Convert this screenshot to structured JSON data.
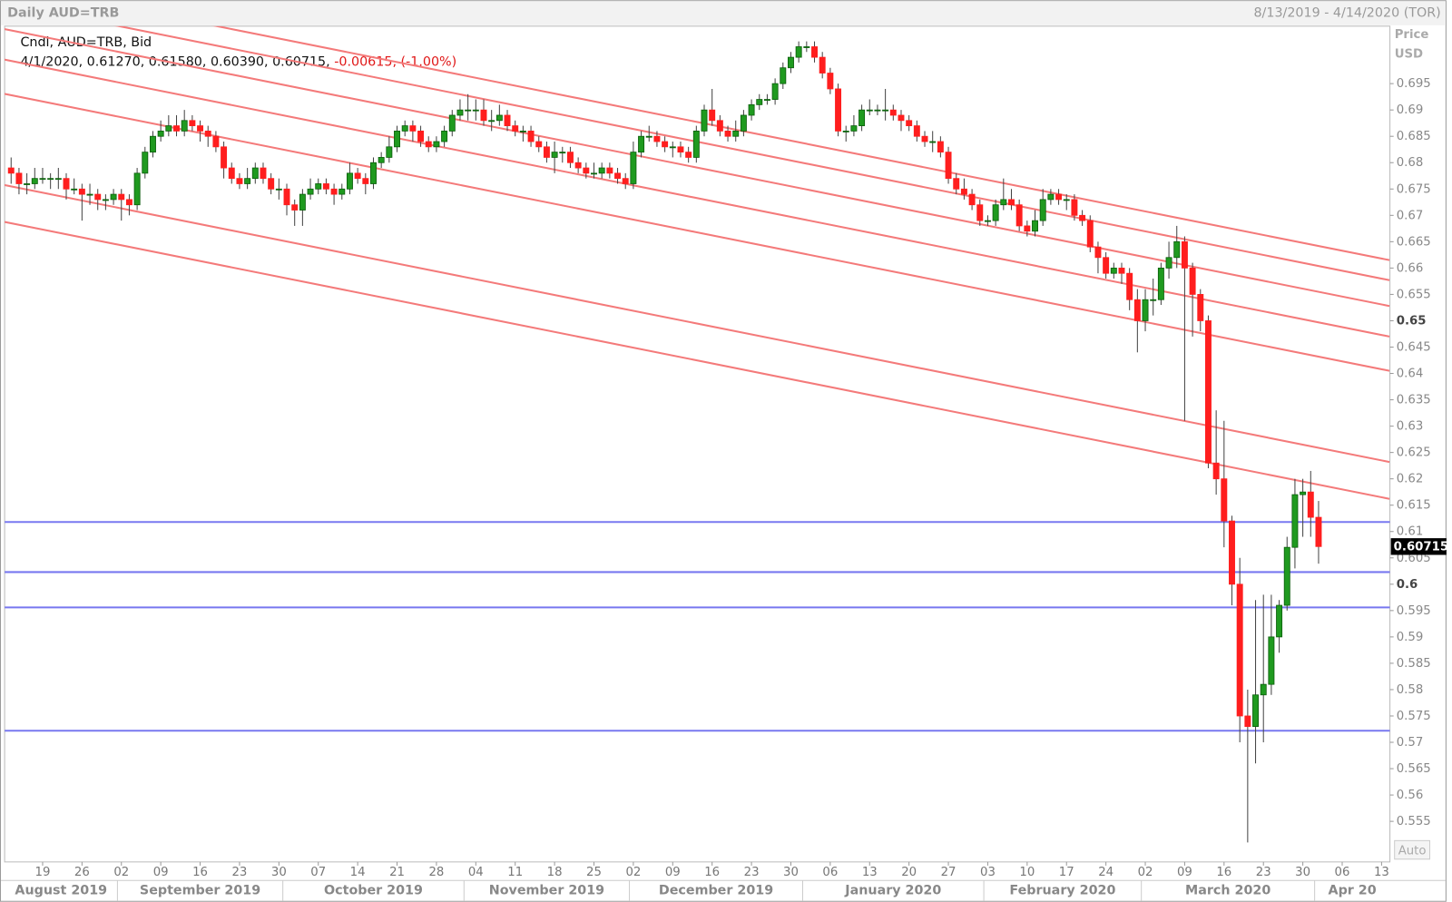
{
  "chart_data": {
    "type": "candlestick",
    "title": "Daily AUD=TRB",
    "date_range": "8/13/2019 - 4/14/2020 (TOR)",
    "y_label": "Price",
    "y_unit": "USD",
    "series_label": "Cndl, AUD=TRB, Bid",
    "info": "4/1/2020, 0.61270, 0.61580, 0.60390, 0.60715,",
    "change": "-0.00615, (-1.00%)",
    "auto_button": "Auto",
    "up_color": "#1f9a1f",
    "down_color": "#ff1e1e",
    "trendline_color": "#f47a7a",
    "hline_color": "#7878f0",
    "ylim": [
      0.5473,
      0.7059
    ],
    "yticks": [
      0.555,
      0.56,
      0.565,
      0.57,
      0.575,
      0.58,
      0.585,
      0.59,
      0.595,
      0.6,
      0.605,
      0.61,
      0.615,
      0.62,
      0.625,
      0.63,
      0.635,
      0.64,
      0.645,
      0.65,
      0.655,
      0.66,
      0.665,
      0.67,
      0.675,
      0.68,
      0.685,
      0.69,
      0.695
    ],
    "xlim": [
      "2019-08-12",
      "2020-04-14"
    ],
    "xticks": [
      {
        "value": "2019-08-19",
        "label": "19"
      },
      {
        "value": "2019-08-26",
        "label": "26"
      },
      {
        "value": "2019-09-02",
        "label": "02"
      },
      {
        "value": "2019-09-09",
        "label": "09"
      },
      {
        "value": "2019-09-16",
        "label": "16"
      },
      {
        "value": "2019-09-23",
        "label": "23"
      },
      {
        "value": "2019-09-30",
        "label": "30"
      },
      {
        "value": "2019-10-07",
        "label": "07"
      },
      {
        "value": "2019-10-14",
        "label": "14"
      },
      {
        "value": "2019-10-21",
        "label": "21"
      },
      {
        "value": "2019-10-28",
        "label": "28"
      },
      {
        "value": "2019-11-04",
        "label": "04"
      },
      {
        "value": "2019-11-11",
        "label": "11"
      },
      {
        "value": "2019-11-18",
        "label": "18"
      },
      {
        "value": "2019-11-25",
        "label": "25"
      },
      {
        "value": "2019-12-02",
        "label": "02"
      },
      {
        "value": "2019-12-09",
        "label": "09"
      },
      {
        "value": "2019-12-16",
        "label": "16"
      },
      {
        "value": "2019-12-23",
        "label": "23"
      },
      {
        "value": "2019-12-30",
        "label": "30"
      },
      {
        "value": "2020-01-06",
        "label": "06"
      },
      {
        "value": "2020-01-13",
        "label": "13"
      },
      {
        "value": "2020-01-20",
        "label": "20"
      },
      {
        "value": "2020-01-27",
        "label": "27"
      },
      {
        "value": "2020-02-03",
        "label": "03"
      },
      {
        "value": "2020-02-10",
        "label": "10"
      },
      {
        "value": "2020-02-17",
        "label": "17"
      },
      {
        "value": "2020-02-24",
        "label": "24"
      },
      {
        "value": "2020-03-02",
        "label": "02"
      },
      {
        "value": "2020-03-09",
        "label": "09"
      },
      {
        "value": "2020-03-16",
        "label": "16"
      },
      {
        "value": "2020-03-23",
        "label": "23"
      },
      {
        "value": "2020-03-30",
        "label": "30"
      },
      {
        "value": "2020-04-06",
        "label": "06"
      },
      {
        "value": "2020-04-13",
        "label": "13"
      }
    ],
    "x_months": [
      {
        "value": "2019-08-01",
        "label": "August 2019"
      },
      {
        "value": "2019-09-01",
        "label": "September 2019"
      },
      {
        "value": "2019-10-01",
        "label": "October 2019"
      },
      {
        "value": "2019-11-01",
        "label": "November 2019"
      },
      {
        "value": "2019-12-01",
        "label": "December 2019"
      },
      {
        "value": "2020-01-01",
        "label": "January 2020"
      },
      {
        "value": "2020-02-01",
        "label": "February 2020"
      },
      {
        "value": "2020-03-01",
        "label": "March 2020"
      },
      {
        "value": "2020-04-01",
        "label": "Apr 20"
      }
    ],
    "x": [
      "2019-08-13",
      "2019-08-14",
      "2019-08-15",
      "2019-08-16",
      "2019-08-19",
      "2019-08-20",
      "2019-08-21",
      "2019-08-22",
      "2019-08-23",
      "2019-08-26",
      "2019-08-27",
      "2019-08-28",
      "2019-08-29",
      "2019-08-30",
      "2019-09-02",
      "2019-09-03",
      "2019-09-04",
      "2019-09-05",
      "2019-09-06",
      "2019-09-09",
      "2019-09-10",
      "2019-09-11",
      "2019-09-12",
      "2019-09-13",
      "2019-09-16",
      "2019-09-17",
      "2019-09-18",
      "2019-09-19",
      "2019-09-20",
      "2019-09-23",
      "2019-09-24",
      "2019-09-25",
      "2019-09-26",
      "2019-09-27",
      "2019-09-30",
      "2019-10-01",
      "2019-10-02",
      "2019-10-03",
      "2019-10-04",
      "2019-10-07",
      "2019-10-08",
      "2019-10-09",
      "2019-10-10",
      "2019-10-11",
      "2019-10-14",
      "2019-10-15",
      "2019-10-16",
      "2019-10-17",
      "2019-10-18",
      "2019-10-21",
      "2019-10-22",
      "2019-10-23",
      "2019-10-24",
      "2019-10-25",
      "2019-10-28",
      "2019-10-29",
      "2019-10-30",
      "2019-10-31",
      "2019-11-01",
      "2019-11-04",
      "2019-11-05",
      "2019-11-06",
      "2019-11-07",
      "2019-11-08",
      "2019-11-11",
      "2019-11-12",
      "2019-11-13",
      "2019-11-14",
      "2019-11-15",
      "2019-11-18",
      "2019-11-19",
      "2019-11-20",
      "2019-11-21",
      "2019-11-22",
      "2019-11-25",
      "2019-11-26",
      "2019-11-27",
      "2019-11-28",
      "2019-11-29",
      "2019-12-02",
      "2019-12-03",
      "2019-12-04",
      "2019-12-05",
      "2019-12-06",
      "2019-12-09",
      "2019-12-10",
      "2019-12-11",
      "2019-12-12",
      "2019-12-13",
      "2019-12-16",
      "2019-12-17",
      "2019-12-18",
      "2019-12-19",
      "2019-12-20",
      "2019-12-23",
      "2019-12-24",
      "2019-12-25",
      "2019-12-26",
      "2019-12-27",
      "2019-12-30",
      "2019-12-31",
      "2020-01-01",
      "2020-01-02",
      "2020-01-03",
      "2020-01-06",
      "2020-01-07",
      "2020-01-08",
      "2020-01-09",
      "2020-01-10",
      "2020-01-13",
      "2020-01-14",
      "2020-01-15",
      "2020-01-16",
      "2020-01-17",
      "2020-01-20",
      "2020-01-21",
      "2020-01-22",
      "2020-01-23",
      "2020-01-24",
      "2020-01-27",
      "2020-01-28",
      "2020-01-29",
      "2020-01-30",
      "2020-01-31",
      "2020-02-03",
      "2020-02-04",
      "2020-02-05",
      "2020-02-06",
      "2020-02-07",
      "2020-02-10",
      "2020-02-11",
      "2020-02-12",
      "2020-02-13",
      "2020-02-14",
      "2020-02-17",
      "2020-02-18",
      "2020-02-19",
      "2020-02-20",
      "2020-02-21",
      "2020-02-24",
      "2020-02-25",
      "2020-02-26",
      "2020-02-27",
      "2020-02-28",
      "2020-03-02",
      "2020-03-03",
      "2020-03-04",
      "2020-03-05",
      "2020-03-06",
      "2020-03-09",
      "2020-03-10",
      "2020-03-11",
      "2020-03-12",
      "2020-03-13",
      "2020-03-16",
      "2020-03-17",
      "2020-03-18",
      "2020-03-19",
      "2020-03-20",
      "2020-03-23",
      "2020-03-24",
      "2020-03-25",
      "2020-03-26",
      "2020-03-27",
      "2020-03-30",
      "2020-03-31",
      "2020-04-01"
    ],
    "open": [
      0.679,
      0.678,
      0.676,
      0.676,
      0.677,
      0.677,
      0.677,
      0.677,
      0.675,
      0.675,
      0.674,
      0.674,
      0.673,
      0.673,
      0.674,
      0.673,
      0.672,
      0.678,
      0.682,
      0.685,
      0.686,
      0.687,
      0.686,
      0.688,
      0.687,
      0.686,
      0.685,
      0.683,
      0.679,
      0.677,
      0.676,
      0.677,
      0.679,
      0.677,
      0.675,
      0.675,
      0.672,
      0.671,
      0.674,
      0.675,
      0.676,
      0.675,
      0.674,
      0.675,
      0.678,
      0.677,
      0.676,
      0.68,
      0.681,
      0.683,
      0.686,
      0.687,
      0.686,
      0.684,
      0.683,
      0.684,
      0.686,
      0.689,
      0.69,
      0.69,
      0.69,
      0.688,
      0.688,
      0.689,
      0.687,
      0.686,
      0.686,
      0.684,
      0.683,
      0.681,
      0.682,
      0.682,
      0.68,
      0.679,
      0.678,
      0.678,
      0.679,
      0.678,
      0.677,
      0.676,
      0.682,
      0.685,
      0.685,
      0.684,
      0.683,
      0.683,
      0.682,
      0.681,
      0.686,
      0.69,
      0.688,
      0.686,
      0.685,
      0.686,
      0.689,
      0.691,
      0.692,
      0.692,
      0.695,
      0.698,
      0.7,
      0.702,
      0.702,
      0.7,
      0.697,
      0.694,
      0.686,
      0.686,
      0.687,
      0.69,
      0.69,
      0.69,
      0.69,
      0.689,
      0.688,
      0.687,
      0.685,
      0.684,
      0.684,
      0.682,
      0.677,
      0.675,
      0.674,
      0.672,
      0.669,
      0.669,
      0.672,
      0.673,
      0.672,
      0.668,
      0.667,
      0.669,
      0.673,
      0.674,
      0.673,
      0.673,
      0.67,
      0.669,
      0.664,
      0.662,
      0.659,
      0.66,
      0.659,
      0.654,
      0.65,
      0.654,
      0.654,
      0.66,
      0.662,
      0.665,
      0.66,
      0.655,
      0.65,
      0.623,
      0.62,
      0.612,
      0.6,
      0.575,
      0.573,
      0.579,
      0.581,
      0.59,
      0.596,
      0.607,
      0.617,
      0.6175,
      0.6127
    ],
    "high": [
      0.681,
      0.679,
      0.678,
      0.679,
      0.679,
      0.678,
      0.679,
      0.678,
      0.677,
      0.676,
      0.676,
      0.675,
      0.674,
      0.675,
      0.675,
      0.674,
      0.679,
      0.683,
      0.686,
      0.688,
      0.689,
      0.689,
      0.69,
      0.689,
      0.688,
      0.687,
      0.686,
      0.684,
      0.68,
      0.678,
      0.679,
      0.68,
      0.68,
      0.678,
      0.677,
      0.676,
      0.673,
      0.675,
      0.677,
      0.677,
      0.677,
      0.676,
      0.676,
      0.68,
      0.679,
      0.678,
      0.681,
      0.682,
      0.685,
      0.687,
      0.688,
      0.688,
      0.687,
      0.685,
      0.685,
      0.687,
      0.69,
      0.692,
      0.693,
      0.692,
      0.692,
      0.69,
      0.691,
      0.69,
      0.688,
      0.687,
      0.687,
      0.685,
      0.684,
      0.684,
      0.683,
      0.683,
      0.681,
      0.68,
      0.68,
      0.68,
      0.68,
      0.679,
      0.678,
      0.684,
      0.686,
      0.687,
      0.686,
      0.685,
      0.684,
      0.684,
      0.683,
      0.687,
      0.691,
      0.694,
      0.689,
      0.687,
      0.688,
      0.69,
      0.692,
      0.693,
      0.693,
      0.696,
      0.699,
      0.701,
      0.703,
      0.703,
      0.703,
      0.701,
      0.698,
      0.695,
      0.687,
      0.689,
      0.691,
      0.692,
      0.691,
      0.694,
      0.691,
      0.69,
      0.689,
      0.688,
      0.686,
      0.686,
      0.685,
      0.683,
      0.678,
      0.677,
      0.675,
      0.673,
      0.67,
      0.673,
      0.677,
      0.675,
      0.673,
      0.669,
      0.671,
      0.675,
      0.675,
      0.675,
      0.674,
      0.674,
      0.671,
      0.67,
      0.665,
      0.663,
      0.661,
      0.661,
      0.66,
      0.656,
      0.656,
      0.658,
      0.661,
      0.665,
      0.668,
      0.666,
      0.661,
      0.656,
      0.651,
      0.633,
      0.631,
      0.613,
      0.605,
      0.58,
      0.597,
      0.598,
      0.598,
      0.597,
      0.609,
      0.62,
      0.62,
      0.6215,
      0.6158
    ],
    "low": [
      0.676,
      0.674,
      0.674,
      0.675,
      0.676,
      0.675,
      0.675,
      0.673,
      0.674,
      0.669,
      0.672,
      0.671,
      0.671,
      0.672,
      0.669,
      0.67,
      0.671,
      0.677,
      0.681,
      0.684,
      0.685,
      0.685,
      0.685,
      0.686,
      0.684,
      0.683,
      0.682,
      0.677,
      0.676,
      0.675,
      0.675,
      0.676,
      0.676,
      0.674,
      0.673,
      0.67,
      0.668,
      0.668,
      0.673,
      0.674,
      0.674,
      0.672,
      0.673,
      0.674,
      0.676,
      0.674,
      0.675,
      0.679,
      0.68,
      0.682,
      0.685,
      0.684,
      0.683,
      0.682,
      0.682,
      0.683,
      0.685,
      0.688,
      0.688,
      0.688,
      0.687,
      0.686,
      0.687,
      0.686,
      0.685,
      0.684,
      0.683,
      0.682,
      0.68,
      0.678,
      0.68,
      0.679,
      0.678,
      0.677,
      0.677,
      0.677,
      0.677,
      0.676,
      0.675,
      0.675,
      0.681,
      0.684,
      0.683,
      0.682,
      0.681,
      0.681,
      0.68,
      0.68,
      0.685,
      0.687,
      0.685,
      0.684,
      0.684,
      0.685,
      0.688,
      0.69,
      0.691,
      0.691,
      0.694,
      0.697,
      0.699,
      0.701,
      0.699,
      0.696,
      0.693,
      0.685,
      0.684,
      0.685,
      0.686,
      0.689,
      0.689,
      0.688,
      0.688,
      0.686,
      0.686,
      0.684,
      0.683,
      0.682,
      0.681,
      0.676,
      0.674,
      0.673,
      0.671,
      0.668,
      0.668,
      0.668,
      0.671,
      0.671,
      0.667,
      0.666,
      0.666,
      0.668,
      0.672,
      0.672,
      0.671,
      0.669,
      0.668,
      0.663,
      0.659,
      0.658,
      0.658,
      0.657,
      0.652,
      0.644,
      0.648,
      0.651,
      0.653,
      0.658,
      0.66,
      0.631,
      0.647,
      0.648,
      0.622,
      0.617,
      0.607,
      0.596,
      0.57,
      0.551,
      0.566,
      0.57,
      0.579,
      0.587,
      0.595,
      0.603,
      0.609,
      0.609,
      0.6039
    ],
    "close": [
      0.678,
      0.676,
      0.676,
      0.677,
      0.677,
      0.677,
      0.677,
      0.675,
      0.675,
      0.674,
      0.674,
      0.673,
      0.673,
      0.674,
      0.673,
      0.672,
      0.678,
      0.682,
      0.685,
      0.686,
      0.687,
      0.686,
      0.688,
      0.687,
      0.686,
      0.685,
      0.683,
      0.679,
      0.677,
      0.676,
      0.677,
      0.679,
      0.677,
      0.675,
      0.675,
      0.672,
      0.671,
      0.674,
      0.675,
      0.676,
      0.675,
      0.674,
      0.675,
      0.678,
      0.677,
      0.676,
      0.68,
      0.681,
      0.683,
      0.686,
      0.687,
      0.686,
      0.684,
      0.683,
      0.684,
      0.686,
      0.689,
      0.69,
      0.69,
      0.69,
      0.688,
      0.688,
      0.689,
      0.687,
      0.686,
      0.686,
      0.684,
      0.683,
      0.681,
      0.682,
      0.682,
      0.68,
      0.679,
      0.678,
      0.678,
      0.679,
      0.678,
      0.677,
      0.676,
      0.682,
      0.685,
      0.685,
      0.684,
      0.683,
      0.683,
      0.682,
      0.681,
      0.686,
      0.69,
      0.688,
      0.686,
      0.685,
      0.686,
      0.689,
      0.691,
      0.692,
      0.692,
      0.695,
      0.698,
      0.7,
      0.702,
      0.702,
      0.7,
      0.697,
      0.694,
      0.686,
      0.686,
      0.687,
      0.69,
      0.69,
      0.69,
      0.69,
      0.689,
      0.688,
      0.687,
      0.685,
      0.684,
      0.684,
      0.682,
      0.677,
      0.675,
      0.674,
      0.672,
      0.669,
      0.669,
      0.672,
      0.673,
      0.672,
      0.668,
      0.667,
      0.669,
      0.673,
      0.674,
      0.673,
      0.673,
      0.67,
      0.669,
      0.664,
      0.662,
      0.659,
      0.66,
      0.659,
      0.654,
      0.65,
      0.654,
      0.654,
      0.66,
      0.662,
      0.665,
      0.66,
      0.655,
      0.65,
      0.623,
      0.62,
      0.612,
      0.6,
      0.575,
      0.573,
      0.579,
      0.581,
      0.59,
      0.596,
      0.607,
      0.617,
      0.6175,
      0.6127,
      0.60715
    ],
    "trendlines": [
      {
        "x": [
          "2019-08-12",
          "2020-04-14"
        ],
        "values": [
          0.714,
          0.6615
        ]
      },
      {
        "x": [
          "2019-08-12",
          "2020-04-14"
        ],
        "values": [
          0.7103,
          0.6577
        ]
      },
      {
        "x": [
          "2019-08-12",
          "2020-04-14"
        ],
        "values": [
          0.7054,
          0.6528
        ]
      },
      {
        "x": [
          "2019-08-12",
          "2020-04-14"
        ],
        "values": [
          0.6996,
          0.647
        ]
      },
      {
        "x": [
          "2019-08-12",
          "2020-04-14"
        ],
        "values": [
          0.6931,
          0.6405
        ]
      },
      {
        "x": [
          "2019-08-12",
          "2020-04-14"
        ],
        "values": [
          0.6758,
          0.6232
        ]
      },
      {
        "x": [
          "2019-08-12",
          "2020-04-14"
        ],
        "values": [
          0.6688,
          0.6162
        ]
      }
    ],
    "hlines": [
      {
        "value": 0.6118
      },
      {
        "value": 0.6023
      },
      {
        "value": 0.5956
      },
      {
        "value": 0.5722
      }
    ]
  }
}
